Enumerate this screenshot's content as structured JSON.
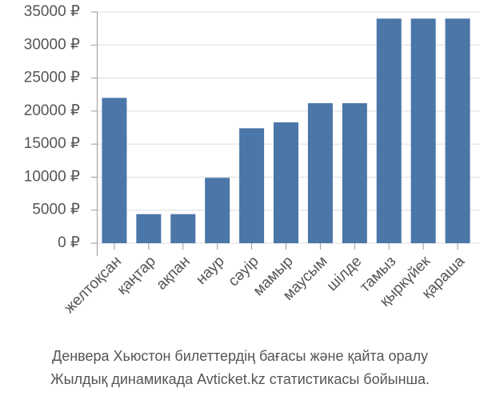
{
  "chart_data": {
    "type": "bar",
    "categories": [
      "желтоқсан",
      "қаңтар",
      "ақпан",
      "наур",
      "сәуір",
      "мамыр",
      "маусым",
      "шілде",
      "тамыз",
      "қыркүйек",
      "қараша"
    ],
    "values": [
      22000,
      4400,
      4400,
      9900,
      17400,
      18300,
      21200,
      21200,
      34000,
      34000,
      34000
    ],
    "color": "#4a76a8",
    "ylim": [
      0,
      35000
    ],
    "yticks": [
      {
        "value": 0,
        "label": "0 ₽"
      },
      {
        "value": 5000,
        "label": "5000 ₽"
      },
      {
        "value": 10000,
        "label": "10000 ₽"
      },
      {
        "value": 15000,
        "label": "15000 ₽"
      },
      {
        "value": 20000,
        "label": "20000 ₽"
      },
      {
        "value": 25000,
        "label": "25000 ₽"
      },
      {
        "value": 30000,
        "label": "30000 ₽"
      },
      {
        "value": 35000,
        "label": "35000 ₽"
      }
    ],
    "grid": true,
    "caption": [
      "Денвера Хьюстон билеттердің бағасы және қайта оралу",
      "Жылдық динамикада Avticket.kz статистикасы бойынша."
    ]
  }
}
